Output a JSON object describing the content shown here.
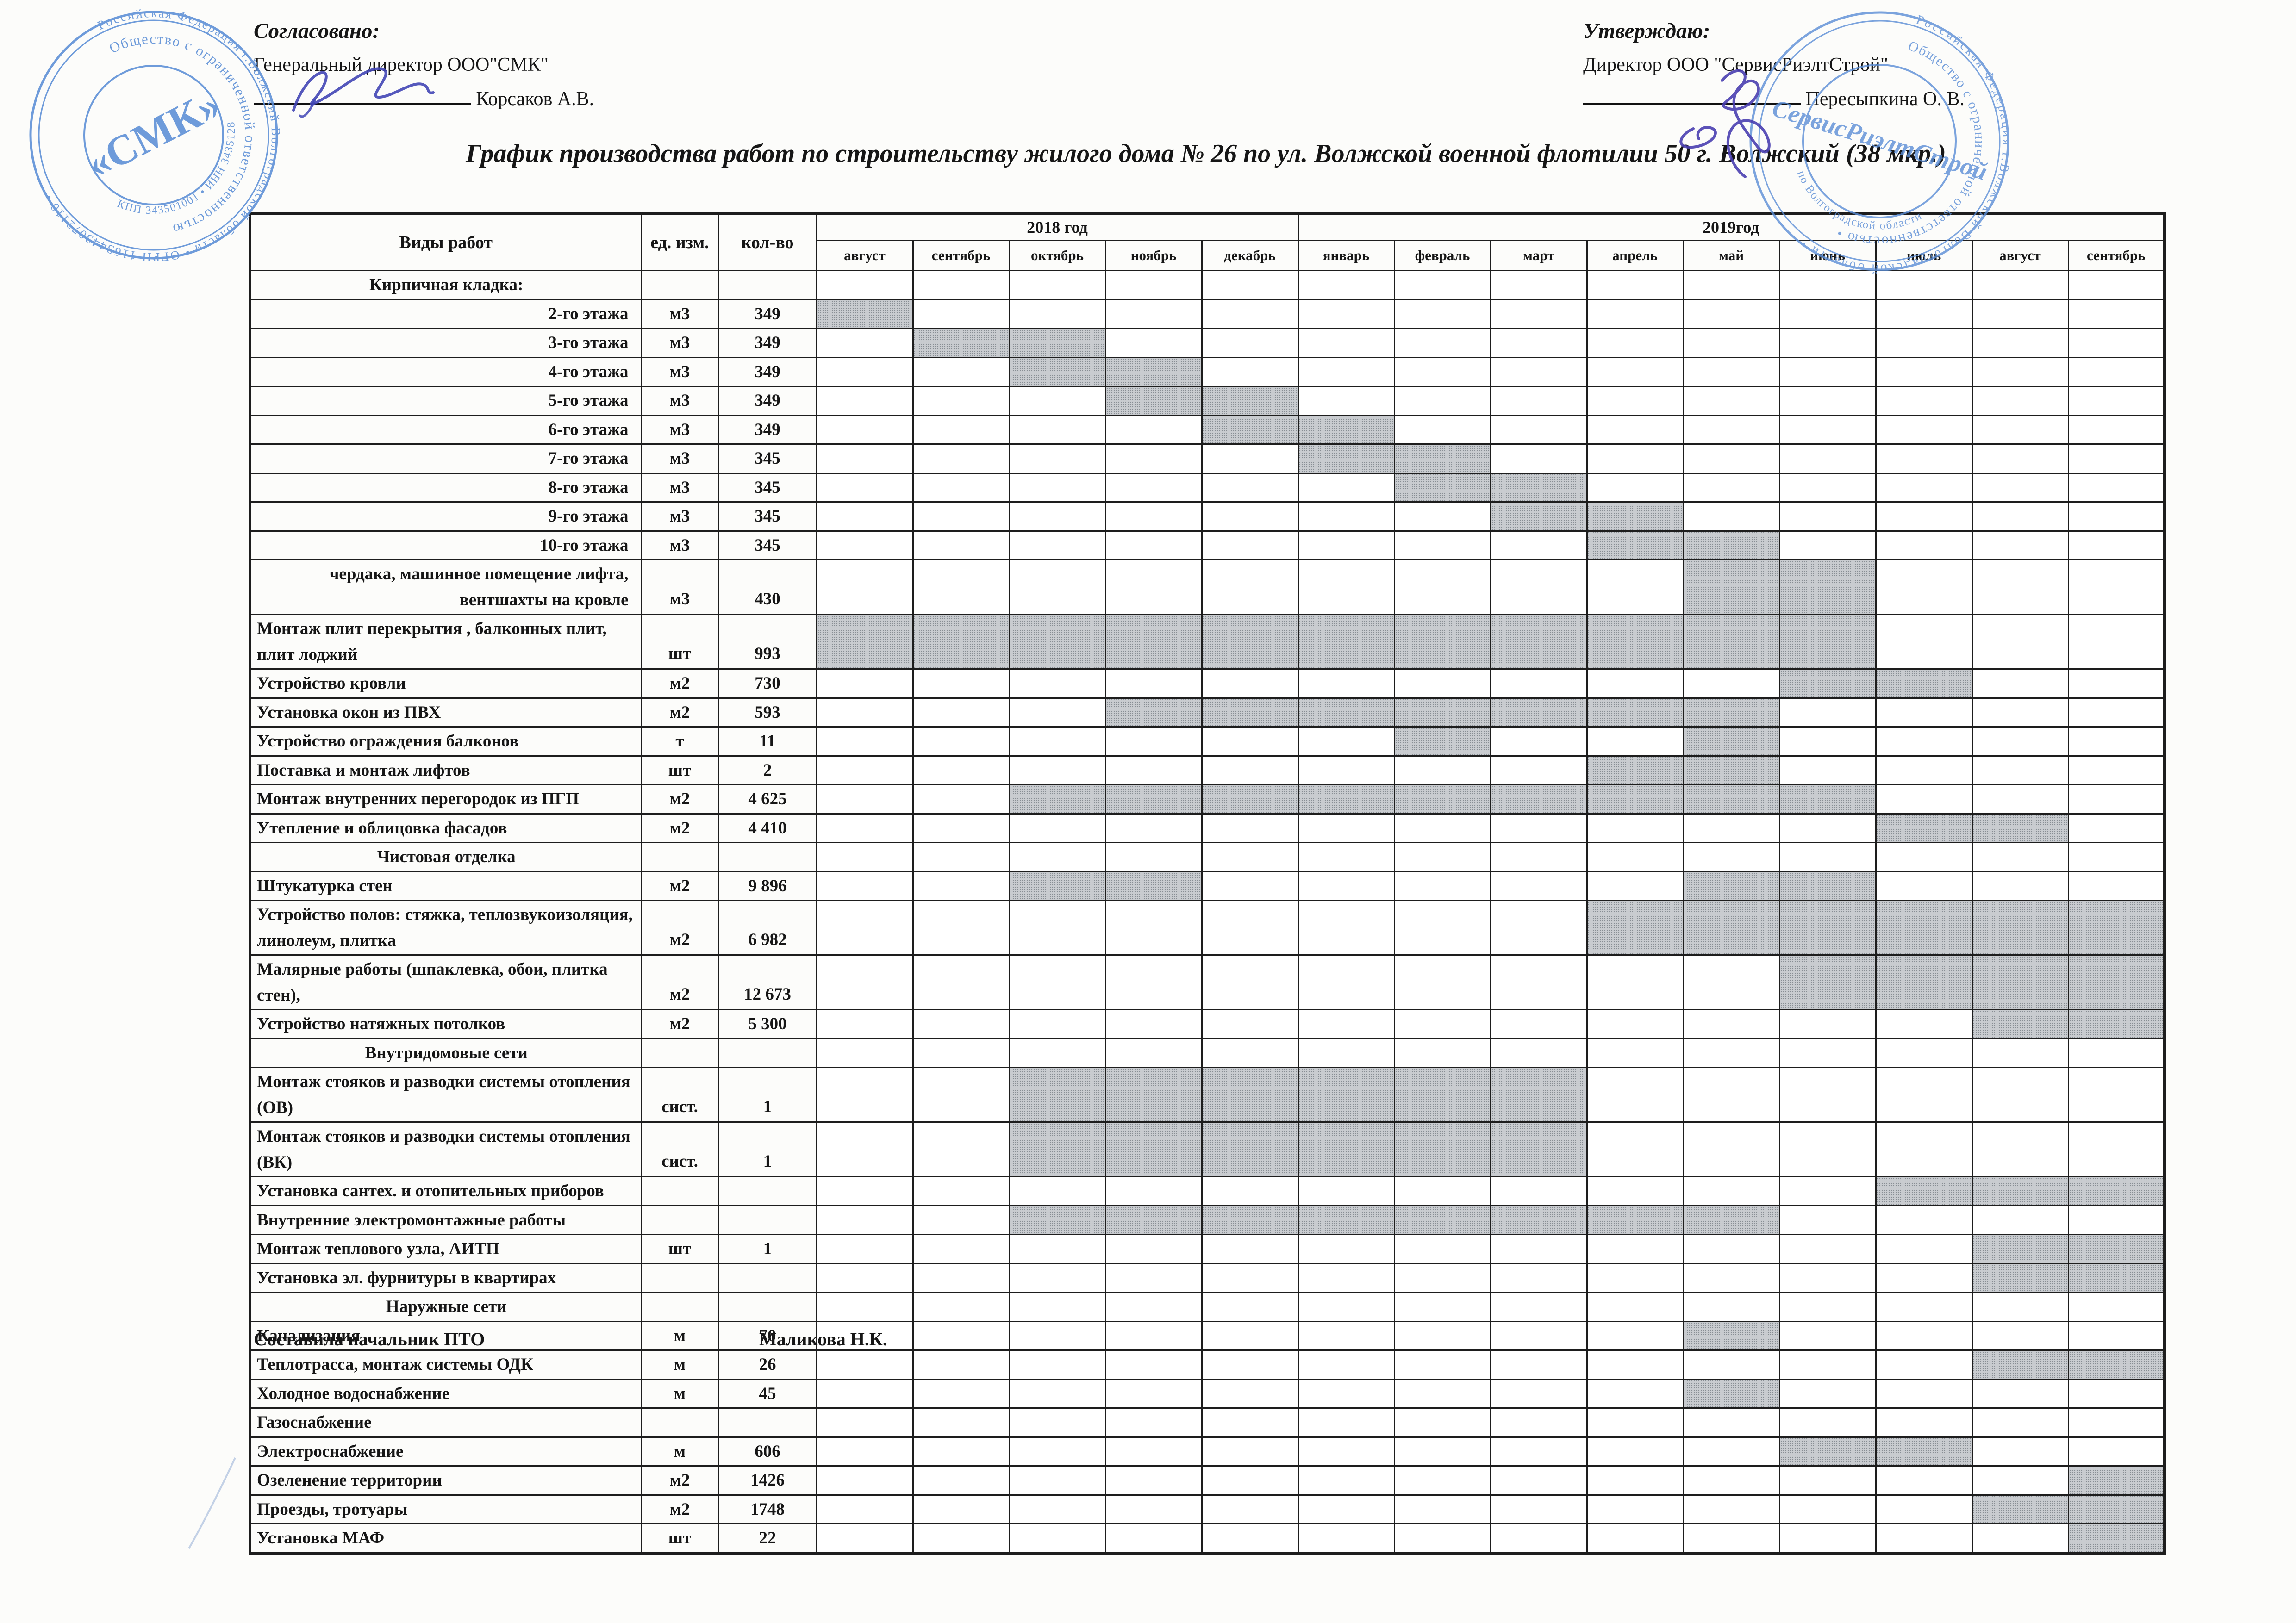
{
  "title": "График производства работ по строительству жилого дома № 26 по ул. Волжской военной флотилии 50 г. Волжский (38 мкр.)",
  "approvals": {
    "left": {
      "heading": "Согласовано:",
      "role": "Генеральный директор ООО\"СМК\"",
      "name": "Корсаков А.В."
    },
    "right": {
      "heading": "Утверждаю:",
      "role": "Директор ООО \"СервисРиэлтСтрой\"",
      "name": "Пересыпкина О. В."
    }
  },
  "table": {
    "headers": {
      "works": "Виды работ",
      "unit": "ед. изм.",
      "qty": "кол-во",
      "year2018": "2018 год",
      "year2019": "2019год",
      "months2018": [
        "август",
        "сентябрь",
        "октябрь",
        "ноябрь",
        "декабрь"
      ],
      "months2019": [
        "январь",
        "февраль",
        "март",
        "апрель",
        "май",
        "июнь",
        "июль",
        "август",
        "сентябрь"
      ]
    },
    "rows": [
      {
        "label": "Кирпичная кладка:",
        "type": "section",
        "unit": "",
        "qty": "",
        "bars": []
      },
      {
        "label": "2-го этажа",
        "type": "row",
        "align": "right",
        "unit": "м3",
        "qty": "349",
        "bars": [
          0
        ]
      },
      {
        "label": "3-го этажа",
        "type": "row",
        "align": "right",
        "unit": "м3",
        "qty": "349",
        "bars": [
          1,
          2
        ]
      },
      {
        "label": "4-го этажа",
        "type": "row",
        "align": "right",
        "unit": "м3",
        "qty": "349",
        "bars": [
          2,
          3
        ]
      },
      {
        "label": "5-го этажа",
        "type": "row",
        "align": "right",
        "unit": "м3",
        "qty": "349",
        "bars": [
          3,
          4
        ]
      },
      {
        "label": "6-го этажа",
        "type": "row",
        "align": "right",
        "unit": "м3",
        "qty": "349",
        "bars": [
          4,
          5
        ]
      },
      {
        "label": "7-го этажа",
        "type": "row",
        "align": "right",
        "unit": "м3",
        "qty": "345",
        "bars": [
          5,
          6
        ]
      },
      {
        "label": "8-го этажа",
        "type": "row",
        "align": "right",
        "unit": "м3",
        "qty": "345",
        "bars": [
          6,
          7
        ]
      },
      {
        "label": "9-го этажа",
        "type": "row",
        "align": "right",
        "unit": "м3",
        "qty": "345",
        "bars": [
          7,
          8
        ]
      },
      {
        "label": "10-го этажа",
        "type": "row",
        "align": "right",
        "unit": "м3",
        "qty": "345",
        "bars": [
          8,
          9
        ]
      },
      {
        "label": "чердака, машинное помещение лифта, вентшахты на кровле",
        "type": "row2",
        "align": "right",
        "unit": "м3",
        "qty": "430",
        "bars": [
          9,
          10
        ]
      },
      {
        "label": "Монтаж плит перекрытия , балконных плит, плит лоджий",
        "type": "row2",
        "align": "left",
        "unit": "шт",
        "qty": "993",
        "bars": [
          0,
          1,
          2,
          3,
          4,
          5,
          6,
          7,
          8,
          9,
          10
        ]
      },
      {
        "label": "Устройство кровли",
        "type": "row",
        "align": "left",
        "unit": "м2",
        "qty": "730",
        "bars": [
          10,
          11
        ]
      },
      {
        "label": "Установка окон из ПВХ",
        "type": "row",
        "align": "left",
        "unit": "м2",
        "qty": "593",
        "bars": [
          3,
          4,
          5,
          6,
          7,
          8,
          9
        ]
      },
      {
        "label": "Устройство ограждения балконов",
        "type": "row",
        "align": "left",
        "unit": "т",
        "qty": "11",
        "bars": [
          6,
          9
        ]
      },
      {
        "label": "Поставка и монтаж  лифтов",
        "type": "row",
        "align": "left",
        "unit": "шт",
        "qty": "2",
        "bars": [
          8,
          9
        ]
      },
      {
        "label": "Монтаж внутренних перегородок из ПГП",
        "type": "row",
        "align": "left",
        "unit": "м2",
        "qty": "4 625",
        "bars": [
          2,
          3,
          4,
          5,
          6,
          7,
          8,
          9,
          10
        ]
      },
      {
        "label": "Утепление  и облицовка фасадов",
        "type": "row",
        "align": "left",
        "unit": "м2",
        "qty": "4 410",
        "bars": [
          11,
          12
        ]
      },
      {
        "label": "Чистовая отделка",
        "type": "section",
        "unit": "",
        "qty": "",
        "bars": []
      },
      {
        "label": "Штукатурка стен",
        "type": "row",
        "align": "left",
        "unit": "м2",
        "qty": "9 896",
        "bars": [
          2,
          3,
          9,
          10
        ]
      },
      {
        "label": "Устройство полов: стяжка, теплозвукоизоляция, линолеум, плитка",
        "type": "row2",
        "align": "left",
        "unit": "м2",
        "qty": "6 982",
        "bars": [
          8,
          9,
          10,
          11,
          12,
          13
        ]
      },
      {
        "label": "Малярные работы (шпаклевка, обои, плитка стен),",
        "type": "row2",
        "align": "left",
        "unit": "м2",
        "qty": "12 673",
        "bars": [
          10,
          11,
          12,
          13
        ]
      },
      {
        "label": "Устройство натяжных потолков",
        "type": "row",
        "align": "left",
        "unit": "м2",
        "qty": "5 300",
        "bars": [
          12,
          13
        ]
      },
      {
        "label": "Внутридомовые  сети",
        "type": "section",
        "unit": "",
        "qty": "",
        "bars": []
      },
      {
        "label": "Монтаж стояков и разводки  системы отопления (ОВ)",
        "type": "row2",
        "align": "left",
        "unit": "сист.",
        "qty": "1",
        "bars": [
          2,
          3,
          4,
          5,
          6,
          7
        ]
      },
      {
        "label": "Монтаж стояков и разводки  системы отопления (ВК)",
        "type": "row2",
        "align": "left",
        "unit": "сист.",
        "qty": "1",
        "bars": [
          2,
          3,
          4,
          5,
          6,
          7
        ]
      },
      {
        "label": "Установка сантех. и отопительных приборов",
        "type": "row",
        "align": "left",
        "unit": "",
        "qty": "",
        "bars": [
          11,
          12,
          13
        ]
      },
      {
        "label": "Внутренние электромонтажные работы",
        "type": "row",
        "align": "left",
        "unit": "",
        "qty": "",
        "bars": [
          2,
          3,
          4,
          5,
          6,
          7,
          8,
          9
        ]
      },
      {
        "label": "Монтаж  теплового узла,  АИТП",
        "type": "row",
        "align": "left",
        "unit": "шт",
        "qty": "1",
        "bars": [
          12,
          13
        ]
      },
      {
        "label": "Установка эл. фурнитуры в квартирах",
        "type": "row",
        "align": "left",
        "unit": "",
        "qty": "",
        "bars": [
          12,
          13
        ]
      },
      {
        "label": "Наружные сети",
        "type": "section",
        "unit": "",
        "qty": "",
        "bars": []
      },
      {
        "label": "Канализация",
        "type": "row",
        "align": "left",
        "unit": "м",
        "qty": "70",
        "bars": [
          9
        ]
      },
      {
        "label": "Теплотрасса, монтаж системы ОДК",
        "type": "row",
        "align": "left",
        "unit": "м",
        "qty": "26",
        "bars": [
          12,
          13
        ]
      },
      {
        "label": "Холодное водоснабжение",
        "type": "row",
        "align": "left",
        "unit": "м",
        "qty": "45",
        "bars": [
          9
        ]
      },
      {
        "label": "Газоснабжение",
        "type": "row",
        "align": "left",
        "unit": "",
        "qty": "",
        "bars": []
      },
      {
        "label": "Электроснабжение",
        "type": "row",
        "align": "left",
        "unit": "м",
        "qty": "606",
        "bars": [
          10,
          11
        ]
      },
      {
        "label": "Озеленение территории",
        "type": "row",
        "align": "left",
        "unit": "м2",
        "qty": "1426",
        "bars": [
          13
        ]
      },
      {
        "label": "Проезды, тротуары",
        "type": "row",
        "align": "left",
        "unit": "м2",
        "qty": "1748",
        "bars": [
          12,
          13
        ]
      },
      {
        "label": "Установка МАФ",
        "type": "row",
        "align": "left",
        "unit": "шт",
        "qty": "22",
        "bars": [
          13
        ]
      }
    ]
  },
  "footer": {
    "composed_by": "Составила начальник ПТО",
    "author": "Маликова Н.К."
  },
  "stamps": {
    "ink_color": "#5b8ed6",
    "left": {
      "outer_text": "Российская Федерация г.Волжский Волгоградской области • ОГРН 1163443072110 •",
      "mid_text": "Общество с ограниченной ответственностью",
      "inner_text": "КПП 343501001 • ИНН 3435128766",
      "center_text": "«СМК»"
    },
    "right": {
      "outer_text": "Российская Федерация г.Волжский Волгоградской области •",
      "mid_text": "Общество с ограниченной ответственностью •",
      "bottom_text": "по Волгоградской области",
      "center_text": "СервисРиэлтСтрой"
    }
  },
  "layout_colors": {
    "bar_gray": "#c9ccd0",
    "line_black": "#1d1d1d",
    "signature_blue": "#4246b5"
  }
}
